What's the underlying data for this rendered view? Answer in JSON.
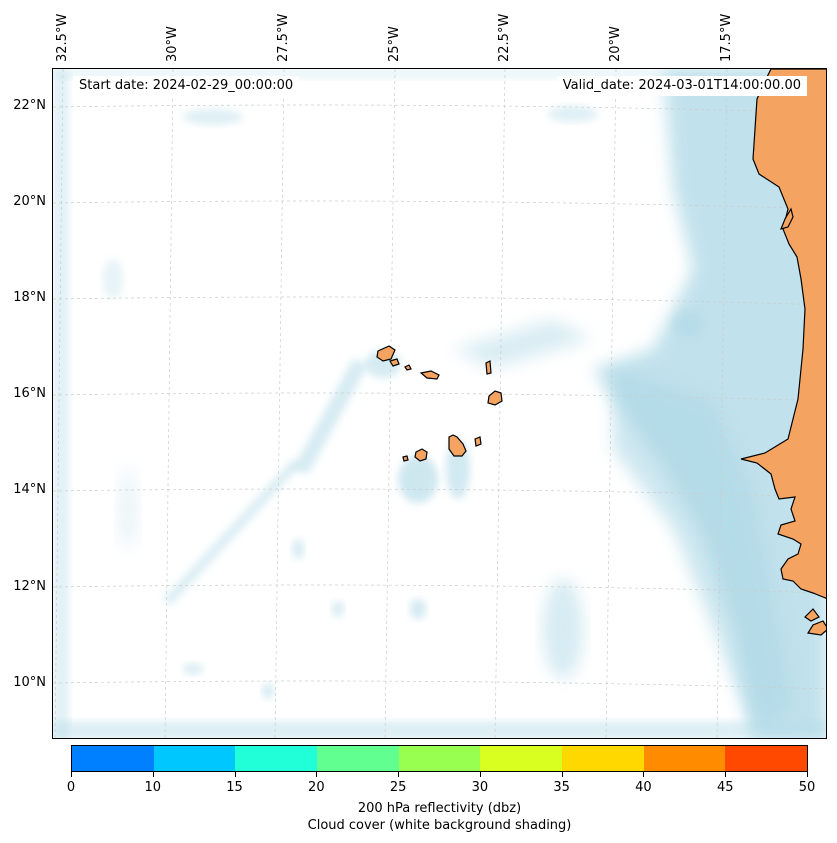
{
  "map": {
    "start_label": "Start date: 2024-02-29_00:00:00",
    "valid_label": "Valid_date: 2024-03-01T14:00:00.00",
    "lon_labels": [
      "32.5°W",
      "30°W",
      "27.5°W",
      "25°W",
      "22.5°W",
      "20°W",
      "17.5°W"
    ],
    "lat_labels": [
      "22°N",
      "20°N",
      "18°N",
      "16°N",
      "14°N",
      "12°N",
      "10°N"
    ],
    "extent": {
      "lon_min": -33.0,
      "lon_max": -15.5,
      "lat_min": 8.9,
      "lat_max": 22.8
    },
    "land_color": "#F4A460",
    "cloud_color": "#ADD8E6",
    "gridlines": true
  },
  "colorbar": {
    "ticks": [
      "0",
      "10",
      "15",
      "20",
      "25",
      "30",
      "35",
      "40",
      "45",
      "50"
    ],
    "colors": [
      "#0080FF",
      "#00C8FF",
      "#20FFD8",
      "#60FF90",
      "#98FF50",
      "#D8FF20",
      "#FFD800",
      "#FF8C00",
      "#FF4800"
    ],
    "label_line1": "200 hPa reflectivity (dbz)",
    "label_line2": "Cloud cover (white background shading)"
  }
}
